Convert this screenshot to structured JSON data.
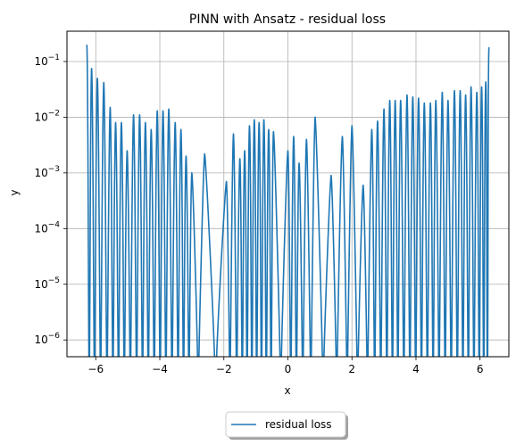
{
  "chart_data": {
    "type": "line",
    "title": "PINN with Ansatz - residual loss",
    "xlabel": "x",
    "ylabel": "y",
    "xlim": [
      -6.9,
      6.9
    ],
    "ylim": [
      5e-07,
      0.35
    ],
    "yscale": "log",
    "grid": true,
    "x_ticks": [
      -6,
      -4,
      -2,
      0,
      2,
      4,
      6
    ],
    "x_tick_labels": [
      "−6",
      "−4",
      "−2",
      "0",
      "2",
      "4",
      "6"
    ],
    "y_ticks": [
      1e-06,
      1e-05,
      0.0001,
      0.001,
      0.01,
      0.1
    ],
    "y_tick_labels": [
      {
        "base": "10",
        "exp": "−6"
      },
      {
        "base": "10",
        "exp": "−5"
      },
      {
        "base": "10",
        "exp": "−4"
      },
      {
        "base": "10",
        "exp": "−3"
      },
      {
        "base": "10",
        "exp": "−2"
      },
      {
        "base": "10",
        "exp": "−1"
      }
    ],
    "legend": {
      "placement": "bottom-center-outside",
      "entries": [
        "residual loss"
      ]
    },
    "series": [
      {
        "name": "residual loss",
        "color": "#1f77b4",
        "peaks": [
          [
            -6.28,
            0.2
          ],
          [
            -6.13,
            0.075
          ],
          [
            -5.95,
            0.05
          ],
          [
            -5.75,
            0.042
          ],
          [
            -5.55,
            0.015
          ],
          [
            -5.38,
            0.008
          ],
          [
            -5.2,
            0.008
          ],
          [
            -5.02,
            0.0025
          ],
          [
            -4.82,
            0.011
          ],
          [
            -4.63,
            0.011
          ],
          [
            -4.45,
            0.008
          ],
          [
            -4.27,
            0.006
          ],
          [
            -4.08,
            0.013
          ],
          [
            -3.9,
            0.013
          ],
          [
            -3.72,
            0.014
          ],
          [
            -3.52,
            0.008
          ],
          [
            -3.34,
            0.006
          ],
          [
            -3.18,
            0.002
          ],
          [
            -3.0,
            0.001
          ],
          [
            -2.6,
            0.0022
          ],
          [
            -1.92,
            0.0007
          ],
          [
            -1.7,
            0.005
          ],
          [
            -1.5,
            0.0018
          ],
          [
            -1.35,
            0.0025
          ],
          [
            -1.2,
            0.007
          ],
          [
            -1.05,
            0.009
          ],
          [
            -0.9,
            0.008
          ],
          [
            -0.75,
            0.009
          ],
          [
            -0.6,
            0.006
          ],
          [
            -0.45,
            0.0055
          ],
          [
            0.0,
            0.0025
          ],
          [
            0.18,
            0.0045
          ],
          [
            0.35,
            0.0015
          ],
          [
            0.58,
            0.004
          ],
          [
            0.85,
            0.01
          ],
          [
            1.35,
            0.0009
          ],
          [
            1.7,
            0.0045
          ],
          [
            2.0,
            0.007
          ],
          [
            2.35,
            0.0006
          ],
          [
            2.62,
            0.006
          ],
          [
            2.8,
            0.0085
          ],
          [
            3.0,
            0.014
          ],
          [
            3.18,
            0.02
          ],
          [
            3.35,
            0.02
          ],
          [
            3.52,
            0.02
          ],
          [
            3.72,
            0.025
          ],
          [
            3.9,
            0.023
          ],
          [
            4.08,
            0.022
          ],
          [
            4.26,
            0.018
          ],
          [
            4.45,
            0.018
          ],
          [
            4.62,
            0.02
          ],
          [
            4.82,
            0.028
          ],
          [
            5.0,
            0.02
          ],
          [
            5.2,
            0.03
          ],
          [
            5.38,
            0.03
          ],
          [
            5.55,
            0.025
          ],
          [
            5.72,
            0.035
          ],
          [
            5.9,
            0.028
          ],
          [
            6.05,
            0.035
          ],
          [
            6.18,
            0.043
          ],
          [
            6.28,
            0.18
          ]
        ]
      }
    ]
  }
}
